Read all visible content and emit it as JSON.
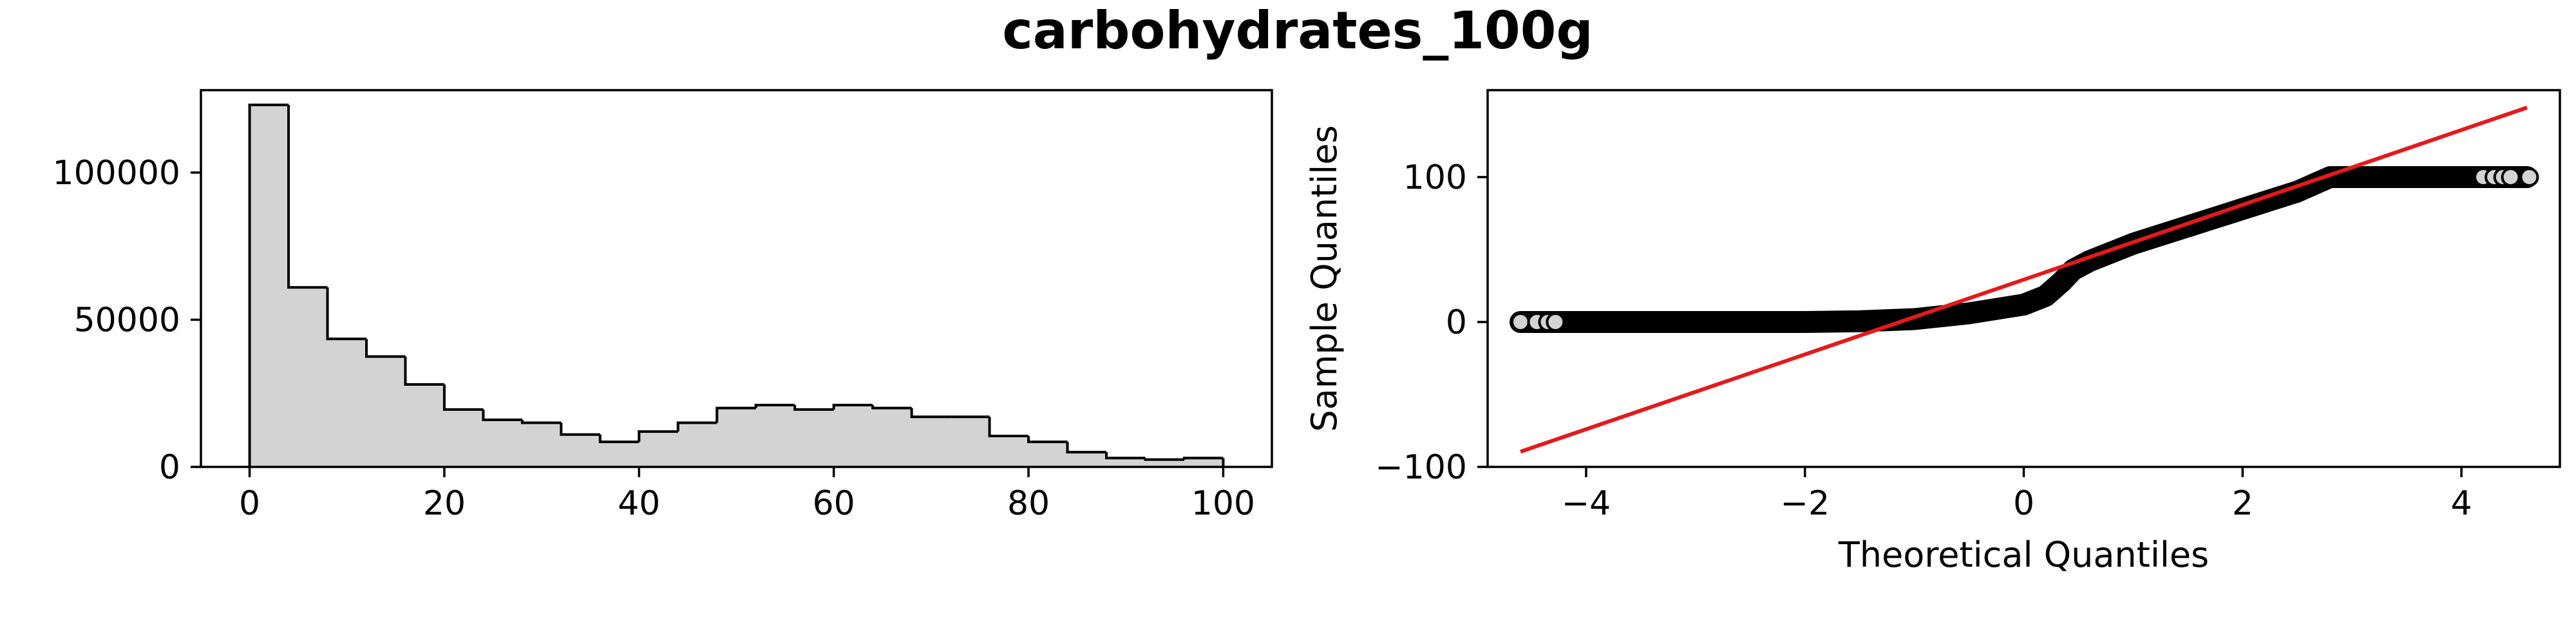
{
  "figure": {
    "title": "carbohydrates_100g"
  },
  "chart_data": [
    {
      "type": "histogram",
      "title": "",
      "xlabel": "",
      "ylabel": "",
      "xlim": [
        -5,
        105
      ],
      "ylim": [
        0,
        128000
      ],
      "xticks": [
        0,
        20,
        40,
        60,
        80,
        100
      ],
      "yticks": [
        0,
        50000,
        100000
      ],
      "bin_edges": [
        0,
        4,
        8,
        12,
        16,
        20,
        24,
        28,
        32,
        36,
        40,
        44,
        48,
        52,
        56,
        60,
        64,
        68,
        72,
        76,
        80,
        84,
        88,
        92,
        96,
        100
      ],
      "counts": [
        123000,
        61000,
        43500,
        37500,
        28000,
        19500,
        16000,
        15000,
        11000,
        8500,
        12000,
        15000,
        20000,
        21000,
        19500,
        21000,
        20000,
        17000,
        17000,
        10500,
        8500,
        5000,
        3000,
        2500,
        3000
      ],
      "fill_color": "#d3d3d3",
      "edge_color": "#000000",
      "grid": false
    },
    {
      "type": "scatter",
      "title": "",
      "xlabel": "Theoretical Quantiles",
      "ylabel": "Sample Quantiles",
      "xlim": [
        -4.9,
        4.9
      ],
      "ylim": [
        -100,
        160
      ],
      "xticks": [
        -4,
        -2,
        0,
        2,
        4
      ],
      "yticks": [
        -100,
        0,
        100
      ],
      "xtick_labels": [
        "−4",
        "−2",
        "0",
        "2",
        "4"
      ],
      "ytick_labels": [
        "−100",
        "0",
        "100"
      ],
      "quantile_curve": [
        [
          -4.6,
          0
        ],
        [
          -4.0,
          0
        ],
        [
          -3.0,
          0
        ],
        [
          -2.0,
          0
        ],
        [
          -1.5,
          0.5
        ],
        [
          -1.0,
          2
        ],
        [
          -0.5,
          6
        ],
        [
          0.0,
          12
        ],
        [
          0.2,
          18
        ],
        [
          0.35,
          28
        ],
        [
          0.45,
          36
        ],
        [
          0.6,
          42
        ],
        [
          0.8,
          48
        ],
        [
          1.0,
          54
        ],
        [
          1.5,
          66
        ],
        [
          2.0,
          78
        ],
        [
          2.5,
          90
        ],
        [
          2.8,
          100
        ],
        [
          3.5,
          100
        ],
        [
          4.6,
          100
        ]
      ],
      "outlier_points_low": [
        [
          -4.6,
          0
        ],
        [
          -4.45,
          0
        ],
        [
          -4.35,
          0
        ],
        [
          -4.28,
          0
        ]
      ],
      "outlier_points_high": [
        [
          4.2,
          100
        ],
        [
          4.3,
          100
        ],
        [
          4.38,
          100
        ],
        [
          4.45,
          100
        ],
        [
          4.62,
          100
        ]
      ],
      "reference_line": {
        "x": [
          -4.6,
          4.6
        ],
        "y": [
          -89.5,
          148
        ]
      },
      "marker_face_color": "#d3d3d3",
      "marker_edge_color": "#000000",
      "line_color": "#e31a1c",
      "grid": false
    }
  ]
}
